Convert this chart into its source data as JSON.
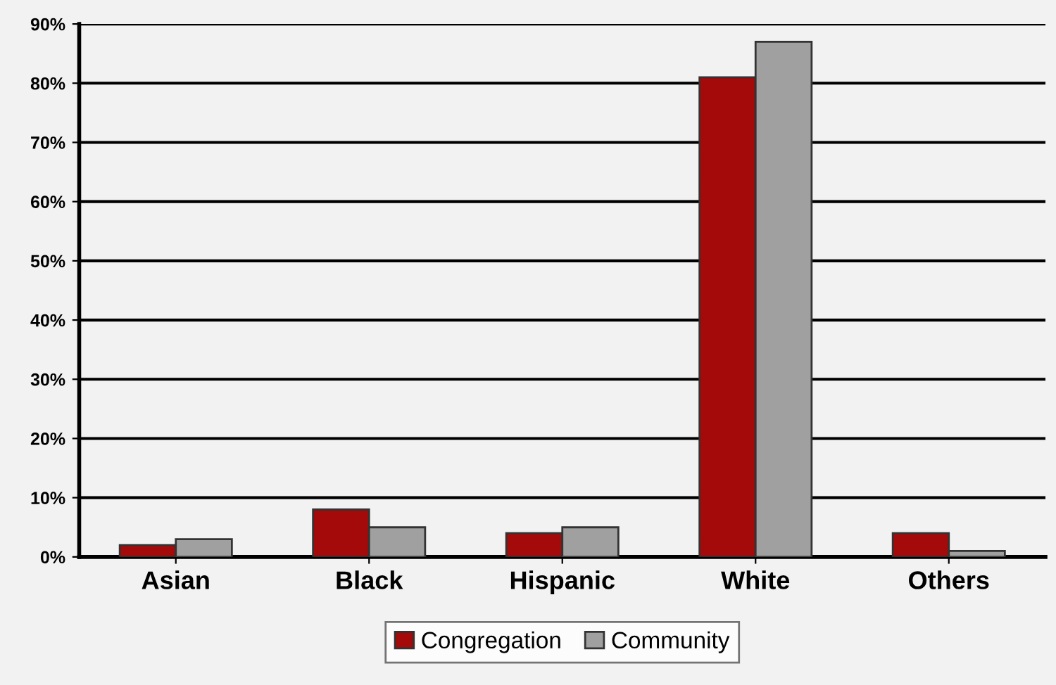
{
  "chart_data": {
    "type": "bar",
    "categories": [
      "Asian",
      "Black",
      "Hispanic",
      "White",
      "Others"
    ],
    "series": [
      {
        "name": "Congregation",
        "color": "#a50a0a",
        "values": [
          2,
          8,
          4,
          81,
          4
        ]
      },
      {
        "name": "Community",
        "color": "#a0a0a0",
        "values": [
          3,
          5,
          5,
          87,
          1
        ]
      }
    ],
    "ylim": [
      0,
      90
    ],
    "yticks": [
      {
        "value": 0,
        "label": "0%"
      },
      {
        "value": 10,
        "label": "10%"
      },
      {
        "value": 20,
        "label": "20%"
      },
      {
        "value": 30,
        "label": "30%"
      },
      {
        "value": 40,
        "label": "40%"
      },
      {
        "value": 50,
        "label": "50%"
      },
      {
        "value": 60,
        "label": "60%"
      },
      {
        "value": 70,
        "label": "70%"
      },
      {
        "value": 80,
        "label": "80%"
      },
      {
        "value": 90,
        "label": "90%"
      }
    ],
    "grid": "y",
    "legend": "bottom"
  }
}
